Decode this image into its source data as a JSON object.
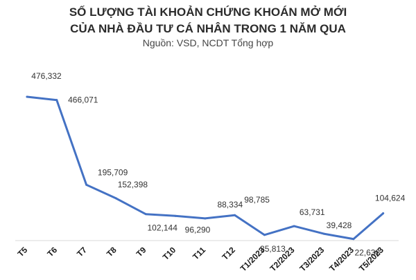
{
  "chart_data": {
    "type": "line",
    "title_line1": "SỐ LƯỢNG TÀI KHOẢN CHỨNG KHOÁN MỞ MỚI",
    "title_line2": "CỦA NHÀ ĐẦU TƯ CÁ NHÂN TRONG 1 NĂM QUA",
    "subtitle": "Nguồn: VSD, NCDT Tổng hợp",
    "categories": [
      "T5",
      "T6",
      "T7",
      "T8",
      "T9",
      "T10",
      "T11",
      "T12",
      "T1/2023",
      "T2/2023",
      "T3/2023",
      "T4/2023",
      "T5/2023"
    ],
    "values": [
      476332,
      466071,
      195709,
      152398,
      102144,
      96290,
      88334,
      98785,
      35813,
      63731,
      39428,
      22638,
      104624
    ],
    "value_labels": [
      "476,332",
      "466,071",
      "195,709",
      "152,398",
      "102,144",
      "96,290",
      "88,334",
      "98,785",
      "35,813",
      "63,731",
      "39,428",
      "22,638",
      "104,624"
    ],
    "xlabel": "",
    "ylabel": "",
    "line_color": "#4472C4",
    "grid": false,
    "legend": "none"
  }
}
